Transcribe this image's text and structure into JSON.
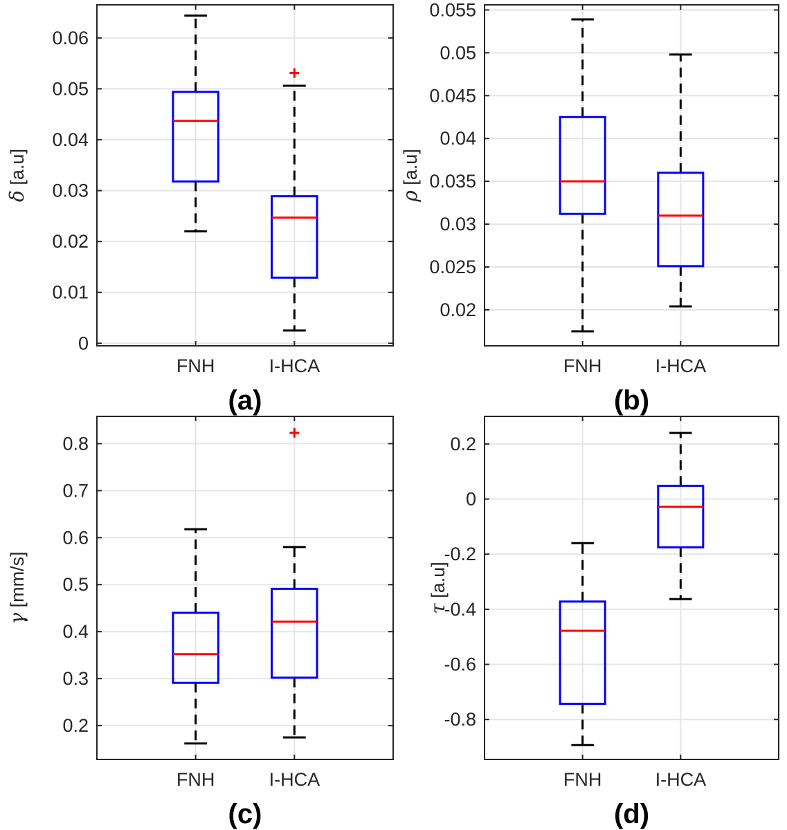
{
  "colors": {
    "box": "#0000ff",
    "median": "#ff0000",
    "whisker": "#000000",
    "outlier": "#ff0000",
    "grid": "#e5e5e5",
    "axis": "#262626"
  },
  "chart_data": [
    {
      "type": "box",
      "panel_label": "(a)",
      "ylabel_symbol": "δ",
      "ylabel_unit": "[a.u]",
      "categories": [
        "FNH",
        "I-HCA"
      ],
      "ylim": [
        -0.0005,
        0.0665
      ],
      "yticks": [
        0,
        0.01,
        0.02,
        0.03,
        0.04,
        0.05,
        0.06
      ],
      "ytick_labels": [
        "0",
        "0.01",
        "0.02",
        "0.03",
        "0.04",
        "0.05",
        "0.06"
      ],
      "grid": true,
      "boxes": [
        {
          "category": "FNH",
          "whisker_low": 0.022,
          "q1": 0.0318,
          "median": 0.0437,
          "q3": 0.0494,
          "whisker_high": 0.0644,
          "outliers": []
        },
        {
          "category": "I-HCA",
          "whisker_low": 0.0025,
          "q1": 0.0129,
          "median": 0.0247,
          "q3": 0.0289,
          "whisker_high": 0.0506,
          "outliers": [
            0.0531
          ]
        }
      ]
    },
    {
      "type": "box",
      "panel_label": "(b)",
      "ylabel_symbol": "ρ",
      "ylabel_unit": "[a.u]",
      "categories": [
        "FNH",
        "I-HCA"
      ],
      "ylim": [
        0.0158,
        0.0556
      ],
      "yticks": [
        0.02,
        0.025,
        0.03,
        0.035,
        0.04,
        0.045,
        0.05,
        0.055
      ],
      "ytick_labels": [
        "0.02",
        "0.025",
        "0.03",
        "0.035",
        "0.04",
        "0.045",
        "0.05",
        "0.055"
      ],
      "grid": true,
      "boxes": [
        {
          "category": "FNH",
          "whisker_low": 0.0175,
          "q1": 0.0312,
          "median": 0.035,
          "q3": 0.0425,
          "whisker_high": 0.0539,
          "outliers": []
        },
        {
          "category": "I-HCA",
          "whisker_low": 0.0204,
          "q1": 0.0251,
          "median": 0.031,
          "q3": 0.036,
          "whisker_high": 0.0498,
          "outliers": []
        }
      ]
    },
    {
      "type": "box",
      "panel_label": "(c)",
      "ylabel_symbol": "γ",
      "ylabel_unit": "[mm/s]",
      "categories": [
        "FNH",
        "I-HCA"
      ],
      "ylim": [
        0.128,
        0.858
      ],
      "yticks": [
        0.2,
        0.3,
        0.4,
        0.5,
        0.6,
        0.7,
        0.8
      ],
      "ytick_labels": [
        "0.2",
        "0.3",
        "0.4",
        "0.5",
        "0.6",
        "0.7",
        "0.8"
      ],
      "grid": true,
      "boxes": [
        {
          "category": "FNH",
          "whisker_low": 0.162,
          "q1": 0.291,
          "median": 0.352,
          "q3": 0.44,
          "whisker_high": 0.618,
          "outliers": []
        },
        {
          "category": "I-HCA",
          "whisker_low": 0.175,
          "q1": 0.302,
          "median": 0.421,
          "q3": 0.491,
          "whisker_high": 0.58,
          "outliers": [
            0.823
          ]
        }
      ]
    },
    {
      "type": "box",
      "panel_label": "(d)",
      "ylabel_symbol": "τ",
      "ylabel_unit": "[a.u]",
      "categories": [
        "FNH",
        "I-HCA"
      ],
      "ylim": [
        -0.945,
        0.3
      ],
      "yticks": [
        -0.8,
        -0.6,
        -0.4,
        -0.2,
        0,
        0.2
      ],
      "ytick_labels": [
        "-0.8",
        "-0.6",
        "-0.4",
        "-0.2",
        "0",
        "0.2"
      ],
      "grid": true,
      "boxes": [
        {
          "category": "FNH",
          "whisker_low": -0.893,
          "q1": -0.743,
          "median": -0.478,
          "q3": -0.372,
          "whisker_high": -0.16,
          "outliers": []
        },
        {
          "category": "I-HCA",
          "whisker_low": -0.363,
          "q1": -0.175,
          "median": -0.028,
          "q3": 0.048,
          "whisker_high": 0.24,
          "outliers": []
        }
      ]
    }
  ]
}
